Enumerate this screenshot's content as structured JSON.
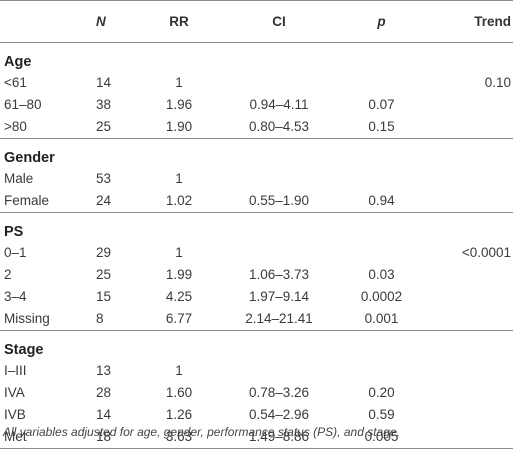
{
  "headers": [
    "",
    "N",
    "RR",
    "CI",
    "p",
    "Trend"
  ],
  "sections": [
    {
      "title": "Age",
      "rows": [
        {
          "label": "<61",
          "n": "14",
          "rr": "1",
          "ci": "",
          "p": "",
          "trend": "0.10"
        },
        {
          "label": "61–80",
          "n": "38",
          "rr": "1.96",
          "ci": "0.94–4.11",
          "p": "0.07",
          "trend": ""
        },
        {
          "label": ">80",
          "n": "25",
          "rr": "1.90",
          "ci": "0.80–4.53",
          "p": "0.15",
          "trend": ""
        }
      ]
    },
    {
      "title": "Gender",
      "rows": [
        {
          "label": "Male",
          "n": "53",
          "rr": "1",
          "ci": "",
          "p": "",
          "trend": ""
        },
        {
          "label": "Female",
          "n": "24",
          "rr": "1.02",
          "ci": "0.55–1.90",
          "p": "0.94",
          "trend": ""
        }
      ]
    },
    {
      "title": "PS",
      "rows": [
        {
          "label": "0–1",
          "n": "29",
          "rr": "1",
          "ci": "",
          "p": "",
          "trend": "<0.0001"
        },
        {
          "label": "2",
          "n": "25",
          "rr": "1.99",
          "ci": "1.06–3.73",
          "p": "0.03",
          "trend": ""
        },
        {
          "label": "3–4",
          "n": "15",
          "rr": "4.25",
          "ci": "1.97–9.14",
          "p": "0.0002",
          "trend": ""
        },
        {
          "label": "Missing",
          "n": "8",
          "rr": "6.77",
          "ci": "2.14–21.41",
          "p": "0.001",
          "trend": ""
        }
      ]
    },
    {
      "title": "Stage",
      "rows": [
        {
          "label": "I–III",
          "n": "13",
          "rr": "1",
          "ci": "",
          "p": "",
          "trend": ""
        },
        {
          "label": "IVA",
          "n": "28",
          "rr": "1.60",
          "ci": "0.78–3.26",
          "p": "0.20",
          "trend": ""
        },
        {
          "label": "IVB",
          "n": "14",
          "rr": "1.26",
          "ci": "0.54–2.96",
          "p": "0.59",
          "trend": ""
        },
        {
          "label": "Met",
          "n": "18",
          "rr": "3.63",
          "ci": "1.49–8.86",
          "p": "0.005",
          "trend": ""
        }
      ]
    }
  ],
  "footnote": "All variables adjusted for age, gender, performance status (PS), and stage."
}
